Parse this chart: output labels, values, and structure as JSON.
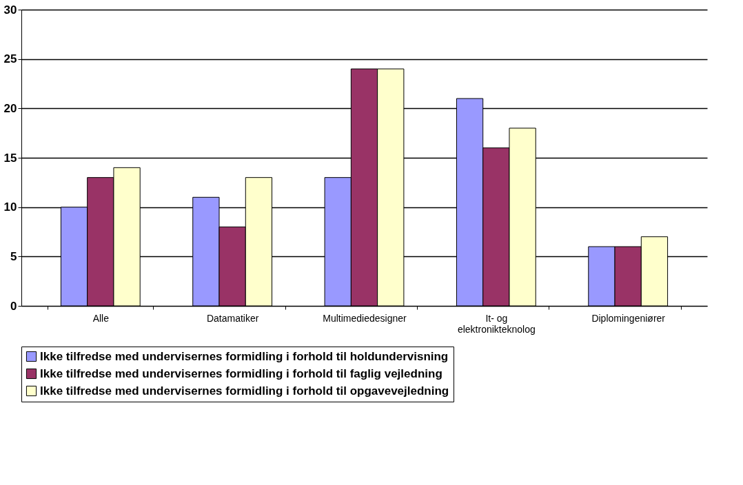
{
  "chart_data": {
    "type": "bar",
    "categories": [
      "Alle",
      "Datamatiker",
      "Multimediedesigner",
      "It- og elektronikteknolog",
      "Diplomingeniører"
    ],
    "series": [
      {
        "name": "Ikke tilfredse med undervisernes formidling i forhold til holdundervisning",
        "color": "#9999ff",
        "values": [
          10,
          11,
          13,
          21,
          6
        ]
      },
      {
        "name": "Ikke tilfredse med undervisernes formidling i forhold til faglig vejledning",
        "color": "#993366",
        "values": [
          13,
          8,
          24,
          16,
          6
        ]
      },
      {
        "name": "Ikke tilfredse med undervisernes formidling i forhold til opgavevejledning",
        "color": "#ffffcc",
        "values": [
          14,
          13,
          24,
          18,
          7
        ]
      }
    ],
    "ylim": [
      0,
      30
    ],
    "yticks": [
      0,
      5,
      10,
      15,
      20,
      25,
      30
    ],
    "grid": "y",
    "legend": "bottom"
  }
}
